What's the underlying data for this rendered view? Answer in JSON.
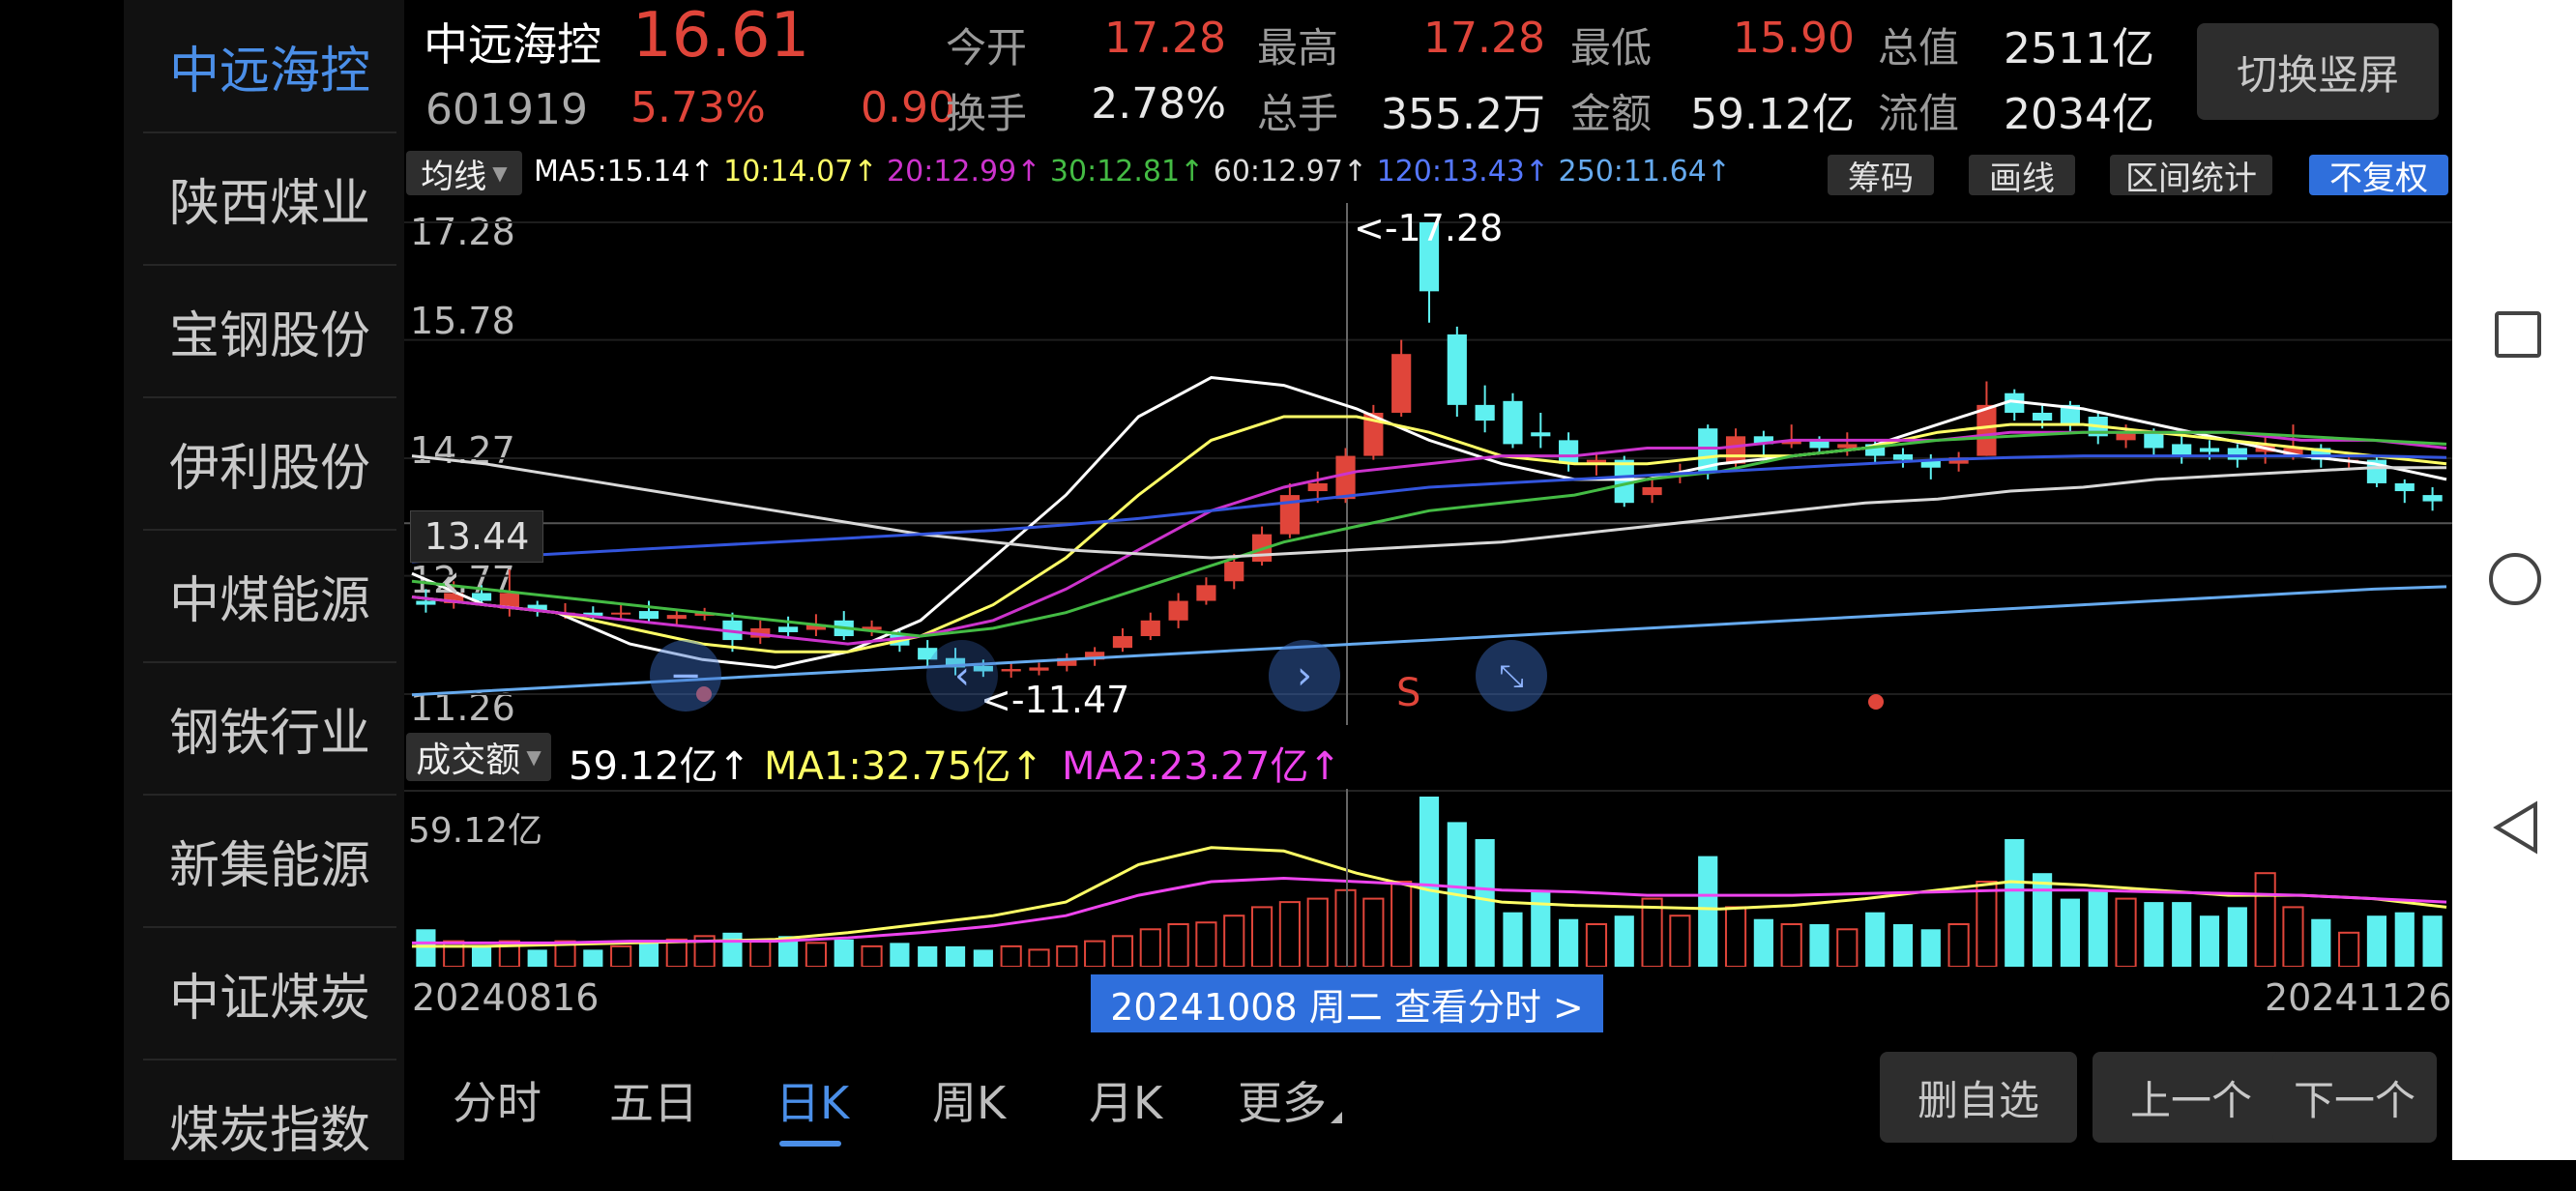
{
  "sidebar": {
    "items": [
      {
        "label": "中远海控",
        "active": true
      },
      {
        "label": "陕西煤业"
      },
      {
        "label": "宝钢股份"
      },
      {
        "label": "伊利股份"
      },
      {
        "label": "中煤能源"
      },
      {
        "label": "钢铁行业"
      },
      {
        "label": "新集能源"
      },
      {
        "label": "中证煤炭"
      },
      {
        "label": "煤炭指数"
      }
    ]
  },
  "header": {
    "name": "中远海控",
    "price": "16.61",
    "code": "601919",
    "pct": "5.73%",
    "chg": "0.90",
    "open_label": "今开",
    "open": "17.28",
    "high_label": "最高",
    "high": "17.28",
    "low_label": "最低",
    "low": "15.90",
    "mcap_label": "总值",
    "mcap": "2511亿",
    "turnover_label": "换手",
    "turnover": "2.78%",
    "vol_label": "总手",
    "vol": "355.2万",
    "amount_label": "金额",
    "amount": "59.12亿",
    "float_label": "流值",
    "float": "2034亿",
    "switch_label": "切换竖屏"
  },
  "toolbar": {
    "ma_select": "均线",
    "ma5": "MA5:15.14↑",
    "ma10": "10:14.07↑",
    "ma20": "20:12.99↑",
    "ma30": "30:12.81↑",
    "ma60": "60:12.97↑",
    "ma120": "120:13.43↑",
    "ma250": "250:11.64↑",
    "chips": "筹码",
    "draw": "画线",
    "range": "区间统计",
    "adjust": "不复权"
  },
  "chart_data": {
    "type": "candlestick",
    "price_ticks": [
      "17.28",
      "15.78",
      "14.27",
      "12.77",
      "11.26"
    ],
    "crosshair_price": "13.44",
    "high_note": "<-17.28",
    "low_note": "<-11.47",
    "signal_label": "S",
    "candles": [
      {
        "o": 12.45,
        "c": 12.4,
        "h": 12.6,
        "l": 12.3
      },
      {
        "o": 12.42,
        "c": 12.55,
        "h": 12.7,
        "l": 12.35
      },
      {
        "o": 12.55,
        "c": 12.45,
        "h": 12.65,
        "l": 12.4
      },
      {
        "o": 12.35,
        "c": 12.55,
        "h": 12.85,
        "l": 12.25
      },
      {
        "o": 12.4,
        "c": 12.32,
        "h": 12.45,
        "l": 12.25
      },
      {
        "o": 12.3,
        "c": 12.3,
        "h": 12.42,
        "l": 12.22
      },
      {
        "o": 12.3,
        "c": 12.26,
        "h": 12.38,
        "l": 12.2
      },
      {
        "o": 12.28,
        "c": 12.3,
        "h": 12.4,
        "l": 12.2
      },
      {
        "o": 12.32,
        "c": 12.22,
        "h": 12.45,
        "l": 12.18
      },
      {
        "o": 12.22,
        "c": 12.27,
        "h": 12.32,
        "l": 12.15
      },
      {
        "o": 12.26,
        "c": 12.3,
        "h": 12.36,
        "l": 12.2
      },
      {
        "o": 12.2,
        "c": 11.95,
        "h": 12.3,
        "l": 11.8
      },
      {
        "o": 11.98,
        "c": 12.1,
        "h": 12.2,
        "l": 11.9
      },
      {
        "o": 12.12,
        "c": 12.05,
        "h": 12.25,
        "l": 11.98
      },
      {
        "o": 12.08,
        "c": 12.15,
        "h": 12.28,
        "l": 12.0
      },
      {
        "o": 12.2,
        "c": 12.0,
        "h": 12.32,
        "l": 11.95
      },
      {
        "o": 12.08,
        "c": 12.12,
        "h": 12.2,
        "l": 12.0
      },
      {
        "o": 12.02,
        "c": 11.88,
        "h": 12.1,
        "l": 11.8
      },
      {
        "o": 11.85,
        "c": 11.7,
        "h": 11.95,
        "l": 11.6
      },
      {
        "o": 11.72,
        "c": 11.6,
        "h": 11.85,
        "l": 11.5
      },
      {
        "o": 11.62,
        "c": 11.55,
        "h": 11.7,
        "l": 11.48
      },
      {
        "o": 11.55,
        "c": 11.58,
        "h": 11.65,
        "l": 11.47
      },
      {
        "o": 11.56,
        "c": 11.6,
        "h": 11.66,
        "l": 11.5
      },
      {
        "o": 11.62,
        "c": 11.72,
        "h": 11.78,
        "l": 11.55
      },
      {
        "o": 11.7,
        "c": 11.8,
        "h": 11.86,
        "l": 11.62
      },
      {
        "o": 11.85,
        "c": 12.0,
        "h": 12.1,
        "l": 11.8
      },
      {
        "o": 12.0,
        "c": 12.2,
        "h": 12.3,
        "l": 11.95
      },
      {
        "o": 12.2,
        "c": 12.45,
        "h": 12.55,
        "l": 12.1
      },
      {
        "o": 12.45,
        "c": 12.65,
        "h": 12.75,
        "l": 12.4
      },
      {
        "o": 12.7,
        "c": 12.95,
        "h": 13.05,
        "l": 12.6
      },
      {
        "o": 12.95,
        "c": 13.3,
        "h": 13.4,
        "l": 12.9
      },
      {
        "o": 13.3,
        "c": 13.8,
        "h": 13.95,
        "l": 13.25
      },
      {
        "o": 13.85,
        "c": 13.95,
        "h": 14.1,
        "l": 13.7
      },
      {
        "o": 13.75,
        "c": 14.3,
        "h": 14.4,
        "l": 13.7
      },
      {
        "o": 14.3,
        "c": 14.85,
        "h": 14.95,
        "l": 14.25
      },
      {
        "o": 14.85,
        "c": 15.6,
        "h": 15.78,
        "l": 14.8
      },
      {
        "o": 17.28,
        "c": 16.4,
        "h": 17.28,
        "l": 16.0
      },
      {
        "o": 15.85,
        "c": 14.95,
        "h": 15.95,
        "l": 14.8
      },
      {
        "o": 14.95,
        "c": 14.75,
        "h": 15.2,
        "l": 14.6
      },
      {
        "o": 15.0,
        "c": 14.45,
        "h": 15.1,
        "l": 14.4
      },
      {
        "o": 14.6,
        "c": 14.55,
        "h": 14.85,
        "l": 14.4
      },
      {
        "o": 14.5,
        "c": 14.2,
        "h": 14.6,
        "l": 14.1
      },
      {
        "o": 14.2,
        "c": 14.25,
        "h": 14.35,
        "l": 14.05
      },
      {
        "o": 14.25,
        "c": 13.7,
        "h": 14.3,
        "l": 13.65
      },
      {
        "o": 13.8,
        "c": 13.9,
        "h": 14.05,
        "l": 13.7
      },
      {
        "o": 14.05,
        "c": 14.1,
        "h": 14.2,
        "l": 13.95
      },
      {
        "o": 14.65,
        "c": 14.1,
        "h": 14.7,
        "l": 14.0
      },
      {
        "o": 14.2,
        "c": 14.55,
        "h": 14.65,
        "l": 14.15
      },
      {
        "o": 14.55,
        "c": 14.45,
        "h": 14.62,
        "l": 14.3
      },
      {
        "o": 14.45,
        "c": 14.5,
        "h": 14.7,
        "l": 14.4
      },
      {
        "o": 14.5,
        "c": 14.4,
        "h": 14.55,
        "l": 14.35
      },
      {
        "o": 14.4,
        "c": 14.45,
        "h": 14.6,
        "l": 14.3
      },
      {
        "o": 14.45,
        "c": 14.3,
        "h": 14.5,
        "l": 14.2
      },
      {
        "o": 14.32,
        "c": 14.25,
        "h": 14.4,
        "l": 14.15
      },
      {
        "o": 14.25,
        "c": 14.15,
        "h": 14.32,
        "l": 14.0
      },
      {
        "o": 14.2,
        "c": 14.28,
        "h": 14.35,
        "l": 14.1
      },
      {
        "o": 14.3,
        "c": 14.95,
        "h": 15.25,
        "l": 14.3
      },
      {
        "o": 15.1,
        "c": 14.85,
        "h": 15.15,
        "l": 14.75
      },
      {
        "o": 14.85,
        "c": 14.75,
        "h": 14.95,
        "l": 14.65
      },
      {
        "o": 14.95,
        "c": 14.7,
        "h": 15.0,
        "l": 14.6
      },
      {
        "o": 14.8,
        "c": 14.55,
        "h": 14.85,
        "l": 14.45
      },
      {
        "o": 14.5,
        "c": 14.6,
        "h": 14.7,
        "l": 14.4
      },
      {
        "o": 14.6,
        "c": 14.4,
        "h": 14.65,
        "l": 14.3
      },
      {
        "o": 14.45,
        "c": 14.3,
        "h": 14.55,
        "l": 14.2
      },
      {
        "o": 14.4,
        "c": 14.35,
        "h": 14.5,
        "l": 14.25
      },
      {
        "o": 14.4,
        "c": 14.25,
        "h": 14.45,
        "l": 14.15
      },
      {
        "o": 14.35,
        "c": 14.45,
        "h": 14.55,
        "l": 14.2
      },
      {
        "o": 14.3,
        "c": 14.4,
        "h": 14.7,
        "l": 14.25
      },
      {
        "o": 14.4,
        "c": 14.25,
        "h": 14.45,
        "l": 14.15
      },
      {
        "o": 14.25,
        "c": 14.25,
        "h": 14.32,
        "l": 14.15
      },
      {
        "o": 14.25,
        "c": 13.95,
        "h": 14.3,
        "l": 13.9
      },
      {
        "o": 13.95,
        "c": 13.85,
        "h": 14.0,
        "l": 13.7
      },
      {
        "o": 13.8,
        "c": 13.72,
        "h": 13.9,
        "l": 13.6
      }
    ],
    "ma_lines": [
      {
        "name": "MA5",
        "color": "#ffffff",
        "values": [
          12.8,
          12.4,
          12.3,
          11.9,
          11.7,
          11.6,
          11.8,
          12.2,
          13.0,
          13.8,
          14.8,
          15.3,
          15.2,
          14.9,
          14.5,
          14.2,
          14.0,
          14.0,
          14.2,
          14.3,
          14.4,
          14.7,
          15.0,
          14.9,
          14.7,
          14.5,
          14.3,
          14.2,
          14.0
        ]
      },
      {
        "name": "MA10",
        "color": "#ffff66",
        "values": [
          12.5,
          12.4,
          12.3,
          12.1,
          11.9,
          11.8,
          11.8,
          12.0,
          12.4,
          13.0,
          13.8,
          14.5,
          14.8,
          14.8,
          14.6,
          14.3,
          14.2,
          14.2,
          14.3,
          14.3,
          14.4,
          14.6,
          14.7,
          14.7,
          14.6,
          14.5,
          14.4,
          14.3,
          14.2
        ]
      },
      {
        "name": "MA20",
        "color": "#cc33cc",
        "values": [
          12.5,
          12.4,
          12.3,
          12.2,
          12.1,
          12.0,
          11.9,
          12.0,
          12.2,
          12.6,
          13.1,
          13.6,
          13.9,
          14.1,
          14.2,
          14.3,
          14.3,
          14.4,
          14.4,
          14.5,
          14.5,
          14.5,
          14.6,
          14.6,
          14.6,
          14.6,
          14.5,
          14.5,
          14.4
        ]
      },
      {
        "name": "MA30",
        "color": "#44bb44",
        "values": [
          12.7,
          12.6,
          12.5,
          12.4,
          12.3,
          12.2,
          12.1,
          12.0,
          12.1,
          12.3,
          12.6,
          12.9,
          13.2,
          13.4,
          13.6,
          13.7,
          13.8,
          14.0,
          14.1,
          14.3,
          14.4,
          14.5,
          14.55,
          14.6,
          14.6,
          14.6,
          14.55,
          14.5,
          14.45
        ]
      },
      {
        "name": "MA60",
        "color": "#d8d8d8",
        "values": [
          14.3,
          14.2,
          14.05,
          13.9,
          13.75,
          13.6,
          13.45,
          13.3,
          13.2,
          13.1,
          13.05,
          13.0,
          13.05,
          13.1,
          13.15,
          13.2,
          13.3,
          13.4,
          13.5,
          13.6,
          13.7,
          13.75,
          13.85,
          13.9,
          14.0,
          14.05,
          14.1,
          14.15,
          14.15
        ]
      },
      {
        "name": "MA120",
        "color": "#3355dd",
        "values": [
          12.95,
          13.0,
          13.05,
          13.1,
          13.15,
          13.2,
          13.25,
          13.3,
          13.35,
          13.42,
          13.5,
          13.6,
          13.7,
          13.8,
          13.9,
          13.95,
          14.0,
          14.05,
          14.1,
          14.15,
          14.2,
          14.25,
          14.28,
          14.3,
          14.3,
          14.3,
          14.3,
          14.3,
          14.28
        ]
      },
      {
        "name": "MA250",
        "color": "#66aaee",
        "values": [
          11.25,
          11.3,
          11.35,
          11.4,
          11.45,
          11.5,
          11.55,
          11.6,
          11.65,
          11.7,
          11.75,
          11.8,
          11.85,
          11.9,
          11.95,
          12.0,
          12.05,
          12.1,
          12.15,
          12.2,
          12.25,
          12.3,
          12.35,
          12.4,
          12.45,
          12.5,
          12.55,
          12.6,
          12.63
        ]
      }
    ],
    "volume_ratio": [
      0.22,
      0.15,
      0.12,
      0.15,
      0.1,
      0.15,
      0.1,
      0.12,
      0.14,
      0.16,
      0.18,
      0.2,
      0.15,
      0.18,
      0.14,
      0.16,
      0.12,
      0.14,
      0.12,
      0.12,
      0.1,
      0.12,
      0.1,
      0.12,
      0.15,
      0.18,
      0.22,
      0.25,
      0.26,
      0.3,
      0.35,
      0.38,
      0.4,
      0.45,
      0.4,
      0.5,
      1.0,
      0.85,
      0.75,
      0.32,
      0.45,
      0.28,
      0.25,
      0.3,
      0.4,
      0.3,
      0.65,
      0.35,
      0.28,
      0.25,
      0.25,
      0.22,
      0.32,
      0.25,
      0.22,
      0.25,
      0.5,
      0.75,
      0.55,
      0.4,
      0.45,
      0.4,
      0.38,
      0.38,
      0.3,
      0.35,
      0.55,
      0.35,
      0.28,
      0.2,
      0.3,
      0.32,
      0.3
    ],
    "vol_ma1": [
      0.12,
      0.12,
      0.13,
      0.14,
      0.15,
      0.16,
      0.2,
      0.25,
      0.3,
      0.38,
      0.6,
      0.7,
      0.68,
      0.55,
      0.45,
      0.38,
      0.36,
      0.35,
      0.34,
      0.36,
      0.4,
      0.45,
      0.5,
      0.48,
      0.45,
      0.42,
      0.42,
      0.4,
      0.35
    ],
    "vol_ma2": [
      0.14,
      0.14,
      0.14,
      0.15,
      0.15,
      0.15,
      0.17,
      0.2,
      0.24,
      0.3,
      0.42,
      0.5,
      0.52,
      0.5,
      0.48,
      0.45,
      0.44,
      0.42,
      0.42,
      0.42,
      0.43,
      0.44,
      0.45,
      0.45,
      0.44,
      0.43,
      0.42,
      0.4,
      0.38
    ]
  },
  "volume": {
    "select": "成交额",
    "value": "59.12亿↑",
    "ma1": "MA1:32.75亿↑",
    "ma2": "MA2:23.27亿↑",
    "axis_max": "59.12亿"
  },
  "dates": {
    "start": "20240816",
    "end": "20241126",
    "cursor": "20241008 周二 查看分时 >"
  },
  "tabs": [
    {
      "label": "分时"
    },
    {
      "label": "五日"
    },
    {
      "label": "日K",
      "active": true
    },
    {
      "label": "周K"
    },
    {
      "label": "月K"
    },
    {
      "label": "更多"
    }
  ],
  "actions": {
    "remove_fav": "删自选",
    "prev": "上一个",
    "next": "下一个"
  },
  "colors": {
    "up": "#e0453a",
    "down": "#5ff0f0",
    "accent": "#4b8fe8"
  }
}
